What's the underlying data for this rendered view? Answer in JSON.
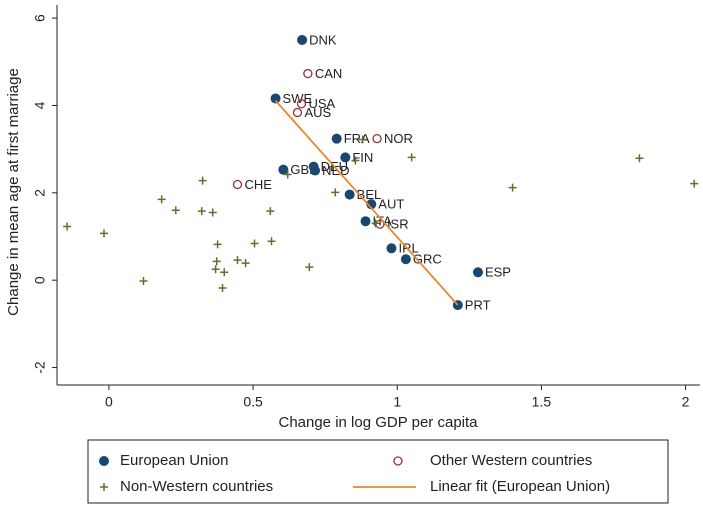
{
  "chart_data": {
    "type": "scatter",
    "xlabel": "Change in log GDP per capita",
    "ylabel": "Change in mean age at first marriage",
    "xlim": [
      -0.18,
      2.05
    ],
    "xticks": [
      0,
      0.5,
      1,
      1.5,
      2
    ],
    "ylim": [
      -2.4,
      6.3
    ],
    "yticks": [
      -2,
      0,
      2,
      4,
      6
    ],
    "legend": "bottom",
    "series": [
      {
        "name": "European Union",
        "color": "#1a476f",
        "marker": "circle",
        "x": [
          0.67,
          0.578,
          0.79,
          0.82,
          0.605,
          0.71,
          0.715,
          0.835,
          0.91,
          0.89,
          0.98,
          1.03,
          1.28,
          1.21
        ],
        "values": [
          5.5,
          4.16,
          3.24,
          2.81,
          2.53,
          2.6,
          2.51,
          1.96,
          1.74,
          1.35,
          0.73,
          0.48,
          0.18,
          -0.57
        ],
        "labels": [
          "DNK",
          "SWE",
          "FRA",
          "FIN",
          "GBR",
          "DEU",
          "NED",
          "BEL",
          "AUT",
          "ITA",
          "IRL",
          "GRC",
          "ESP",
          "PRT"
        ]
      },
      {
        "name": "Other Western countries",
        "color": "#90353b",
        "marker": "hollow-circle",
        "x": [
          0.69,
          0.668,
          0.654,
          0.93,
          0.94,
          0.446
        ],
        "values": [
          4.73,
          4.04,
          3.84,
          3.24,
          1.28,
          2.19
        ],
        "labels": [
          "CAN",
          "USA",
          "AUS",
          "NOR",
          "ISR",
          "CHE"
        ]
      },
      {
        "name": "Non-Western countries",
        "color": "#55752f",
        "marker": "plus",
        "x": [
          -0.145,
          -0.017,
          0.12,
          0.183,
          0.232,
          0.325,
          0.322,
          0.36,
          0.377,
          0.374,
          0.37,
          0.4,
          0.394,
          0.446,
          0.474,
          0.505,
          0.564,
          0.56,
          0.62,
          0.695,
          0.785,
          0.88,
          0.855,
          1.05,
          1.4,
          1.84,
          2.03,
          0.925
        ],
        "values": [
          1.23,
          1.07,
          -0.02,
          1.85,
          1.6,
          2.28,
          1.58,
          1.55,
          0.82,
          0.43,
          0.25,
          0.18,
          -0.18,
          0.46,
          0.39,
          0.84,
          0.89,
          1.58,
          2.42,
          0.3,
          2.01,
          3.22,
          2.74,
          2.81,
          2.12,
          2.79,
          2.21,
          1.3
        ]
      },
      {
        "name": "Linear fit (European Union)",
        "color": "#e8872a",
        "marker": "line",
        "x": [
          0.578,
          1.21
        ],
        "values": [
          4.11,
          -0.57
        ]
      }
    ]
  }
}
